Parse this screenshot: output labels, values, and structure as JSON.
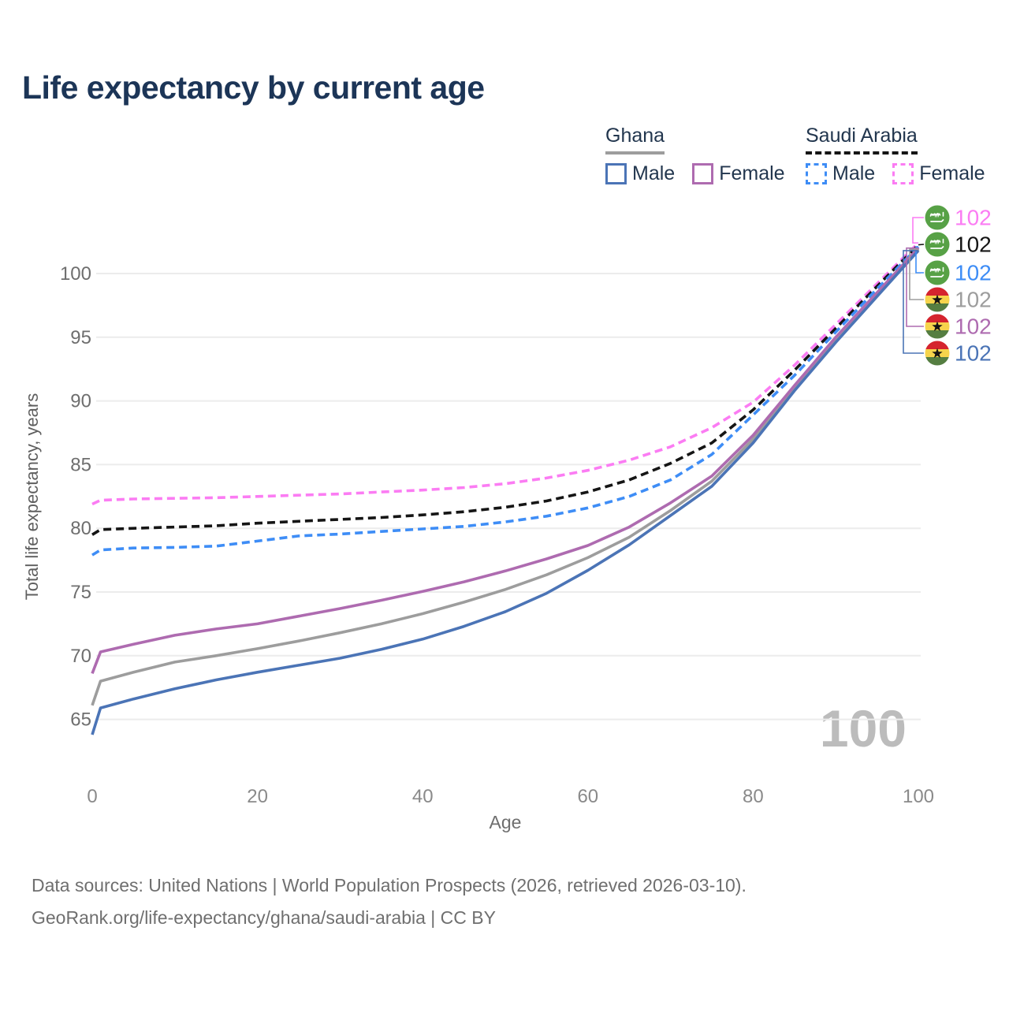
{
  "title": "Life expectancy by current age",
  "legend": {
    "groups": [
      {
        "name": "Ghana",
        "line_style": "solid",
        "line_color": "#9d9d9d",
        "items": [
          {
            "label": "Male",
            "style": "solid",
            "color": "#4b74b6"
          },
          {
            "label": "Female",
            "style": "solid",
            "color": "#ae6bb0"
          }
        ]
      },
      {
        "name": "Saudi Arabia",
        "line_style": "dashed",
        "line_color": "#151515",
        "items": [
          {
            "label": "Male",
            "style": "dashed",
            "color": "#3e8df6"
          },
          {
            "label": "Female",
            "style": "dashed",
            "color": "#fb7cf3"
          }
        ]
      }
    ]
  },
  "chart_data": {
    "type": "line",
    "title": "Life expectancy by current age",
    "xlabel": "Age",
    "ylabel": "Total life expectancy, years",
    "x_ticks": [
      0,
      20,
      40,
      60,
      80,
      100
    ],
    "y_ticks": [
      65,
      70,
      75,
      80,
      85,
      90,
      95,
      100
    ],
    "xlim": [
      0,
      100
    ],
    "ylim": [
      61.5,
      104.5
    ],
    "grid": true,
    "legend_position": "top-right",
    "watermark": "100",
    "x": [
      0,
      1,
      5,
      10,
      15,
      20,
      25,
      30,
      35,
      40,
      45,
      50,
      55,
      60,
      65,
      70,
      75,
      80,
      85,
      90,
      95,
      100
    ],
    "series": [
      {
        "name": "Saudi Arabia Female",
        "country": "Saudi Arabia",
        "sex": "Female",
        "style": "dashed",
        "color": "#fb7cf3",
        "flag": "saudi-arabia",
        "end_label": "102",
        "values": [
          81.9,
          82.2,
          82.3,
          82.35,
          82.4,
          82.5,
          82.6,
          82.7,
          82.85,
          83.0,
          83.2,
          83.5,
          83.95,
          84.55,
          85.35,
          86.4,
          87.9,
          89.9,
          92.8,
          96.0,
          99.2,
          102.4
        ]
      },
      {
        "name": "Saudi Arabia Both sexes",
        "country": "Saudi Arabia",
        "sex": "Both",
        "style": "dashed",
        "color": "#151515",
        "flag": "saudi-arabia",
        "end_label": "102",
        "values": [
          79.5,
          79.9,
          80.0,
          80.1,
          80.2,
          80.4,
          80.55,
          80.7,
          80.85,
          81.05,
          81.3,
          81.65,
          82.15,
          82.85,
          83.8,
          85.1,
          86.7,
          89.3,
          92.4,
          95.7,
          99.0,
          102.25
        ]
      },
      {
        "name": "Saudi Arabia Male",
        "country": "Saudi Arabia",
        "sex": "Male",
        "style": "dashed",
        "color": "#3e8df6",
        "flag": "saudi-arabia",
        "end_label": "102",
        "values": [
          77.9,
          78.3,
          78.45,
          78.5,
          78.6,
          79.0,
          79.4,
          79.55,
          79.75,
          79.95,
          80.15,
          80.5,
          80.95,
          81.6,
          82.5,
          83.8,
          85.8,
          88.9,
          92.0,
          95.4,
          98.8,
          102.1
        ]
      },
      {
        "name": "Ghana Both sexes",
        "country": "Ghana",
        "sex": "Both",
        "style": "solid",
        "color": "#9d9d9d",
        "flag": "ghana",
        "end_label": "102",
        "values": [
          66.1,
          68.0,
          68.7,
          69.5,
          70.0,
          70.55,
          71.15,
          71.8,
          72.5,
          73.3,
          74.2,
          75.2,
          76.35,
          77.7,
          79.3,
          81.4,
          83.7,
          87.0,
          91.0,
          94.8,
          98.35,
          101.9
        ]
      },
      {
        "name": "Ghana Female",
        "country": "Ghana",
        "sex": "Female",
        "style": "solid",
        "color": "#ae6bb0",
        "flag": "ghana",
        "end_label": "102",
        "values": [
          68.6,
          70.3,
          70.9,
          71.6,
          72.1,
          72.5,
          73.1,
          73.7,
          74.35,
          75.05,
          75.8,
          76.65,
          77.6,
          78.65,
          80.1,
          82.0,
          84.1,
          87.3,
          91.2,
          95.0,
          98.5,
          102.0
        ]
      },
      {
        "name": "Ghana Male",
        "country": "Ghana",
        "sex": "Male",
        "style": "solid",
        "color": "#4b74b6",
        "flag": "ghana",
        "end_label": "102",
        "values": [
          63.8,
          65.9,
          66.6,
          67.4,
          68.1,
          68.7,
          69.25,
          69.8,
          70.5,
          71.3,
          72.3,
          73.45,
          74.9,
          76.7,
          78.7,
          81.0,
          83.3,
          86.7,
          90.8,
          94.6,
          98.2,
          101.8
        ]
      }
    ],
    "flag_colors": {
      "saudi_green": "#57a146",
      "ghana_red": "#d5242e",
      "ghana_yellow": "#f6d44c",
      "ghana_green": "#557e41",
      "ghana_star": "#131313"
    }
  },
  "footer": {
    "line1": "Data sources: United Nations | World Population Prospects (2026, retrieved 2026-03-10).",
    "line2": "GeoRank.org/life-expectancy/ghana/saudi-arabia | CC BY"
  }
}
